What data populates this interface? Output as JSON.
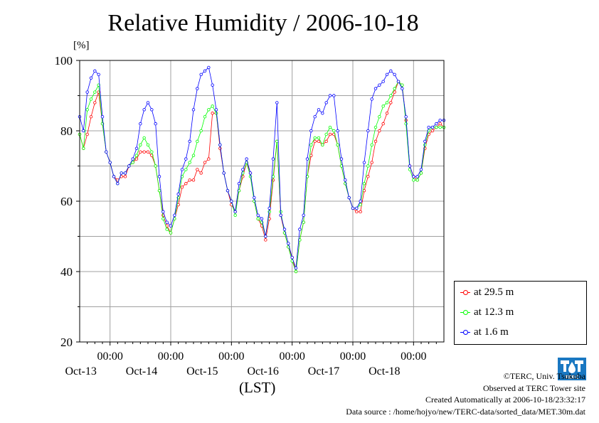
{
  "chart_data": {
    "type": "line",
    "title": "Relative Humidity / 2006-10-18",
    "unit_label": "[%]",
    "xlabel": "(LST)",
    "ylim": [
      20,
      100
    ],
    "yticks": [
      20,
      40,
      60,
      80,
      100
    ],
    "xlim": [
      0,
      144
    ],
    "x_ticks": [
      {
        "x": 12,
        "time": "00:00",
        "date": "Oct-13"
      },
      {
        "x": 36,
        "time": "00:00",
        "date": "Oct-14"
      },
      {
        "x": 60,
        "time": "00:00",
        "date": "Oct-15"
      },
      {
        "x": 84,
        "time": "00:00",
        "date": "Oct-16"
      },
      {
        "x": 108,
        "time": "00:00",
        "date": "Oct-17"
      },
      {
        "x": 132,
        "time": "00:00",
        "date": "Oct-18"
      }
    ],
    "grid": true,
    "legend_position": "right",
    "series": [
      {
        "name": "at 29.5 m",
        "color": "#ff0000",
        "points": [
          [
            0,
            79
          ],
          [
            1,
            75
          ],
          [
            2,
            79
          ],
          [
            3,
            84
          ],
          [
            4,
            88
          ],
          [
            5,
            91
          ],
          [
            6,
            82
          ],
          [
            7,
            74
          ],
          [
            8,
            71
          ],
          [
            9,
            67
          ],
          [
            10,
            66
          ],
          [
            11,
            67
          ],
          [
            12,
            67
          ],
          [
            13,
            70
          ],
          [
            14,
            71
          ],
          [
            15,
            72
          ],
          [
            16,
            74
          ],
          [
            17,
            74
          ],
          [
            18,
            74
          ],
          [
            19,
            73
          ],
          [
            20,
            70
          ],
          [
            21,
            63
          ],
          [
            22,
            56
          ],
          [
            23,
            53
          ],
          [
            24,
            51
          ],
          [
            25,
            55
          ],
          [
            26,
            59
          ],
          [
            27,
            64
          ],
          [
            28,
            65
          ],
          [
            29,
            66
          ],
          [
            30,
            66
          ],
          [
            31,
            69
          ],
          [
            32,
            68
          ],
          [
            33,
            71
          ],
          [
            34,
            72
          ],
          [
            35,
            85
          ],
          [
            36,
            85
          ],
          [
            37,
            75
          ],
          [
            38,
            68
          ],
          [
            39,
            63
          ],
          [
            40,
            59
          ],
          [
            41,
            57
          ],
          [
            42,
            63
          ],
          [
            43,
            67
          ],
          [
            44,
            71
          ],
          [
            45,
            68
          ],
          [
            46,
            60
          ],
          [
            47,
            55
          ],
          [
            48,
            53
          ],
          [
            49,
            49
          ],
          [
            50,
            55
          ],
          [
            51,
            66
          ],
          [
            52,
            77
          ],
          [
            53,
            56
          ],
          [
            54,
            51
          ],
          [
            55,
            47
          ],
          [
            56,
            44
          ],
          [
            57,
            40
          ],
          [
            58,
            49
          ],
          [
            59,
            54
          ],
          [
            60,
            67
          ],
          [
            61,
            73
          ],
          [
            62,
            77
          ],
          [
            63,
            77
          ],
          [
            64,
            76
          ],
          [
            65,
            77
          ],
          [
            66,
            79
          ],
          [
            67,
            79
          ],
          [
            68,
            76
          ],
          [
            69,
            70
          ],
          [
            70,
            65
          ],
          [
            71,
            61
          ],
          [
            72,
            58
          ],
          [
            73,
            57
          ],
          [
            74,
            57
          ],
          [
            75,
            63
          ],
          [
            76,
            67
          ],
          [
            77,
            71
          ],
          [
            78,
            77
          ],
          [
            79,
            80
          ],
          [
            80,
            82
          ],
          [
            81,
            85
          ],
          [
            82,
            88
          ],
          [
            83,
            91
          ],
          [
            84,
            94
          ],
          [
            85,
            93
          ],
          [
            86,
            83
          ],
          [
            87,
            70
          ],
          [
            88,
            67
          ],
          [
            89,
            66
          ],
          [
            90,
            68
          ],
          [
            91,
            75
          ],
          [
            92,
            79
          ],
          [
            93,
            80
          ],
          [
            94,
            81
          ],
          [
            95,
            82
          ],
          [
            96,
            81
          ]
        ]
      },
      {
        "name": "at 12.3 m",
        "color": "#00ff00",
        "points": [
          [
            0,
            79
          ],
          [
            1,
            75
          ],
          [
            2,
            86
          ],
          [
            3,
            89
          ],
          [
            4,
            91
          ],
          [
            5,
            93
          ],
          [
            6,
            82
          ],
          [
            7,
            74
          ],
          [
            8,
            71
          ],
          [
            9,
            67
          ],
          [
            10,
            65
          ],
          [
            11,
            68
          ],
          [
            12,
            68
          ],
          [
            13,
            70
          ],
          [
            14,
            71
          ],
          [
            15,
            73
          ],
          [
            16,
            76
          ],
          [
            17,
            78
          ],
          [
            18,
            76
          ],
          [
            19,
            74
          ],
          [
            20,
            70
          ],
          [
            21,
            63
          ],
          [
            22,
            55
          ],
          [
            23,
            52
          ],
          [
            24,
            51
          ],
          [
            25,
            55
          ],
          [
            26,
            61
          ],
          [
            27,
            67
          ],
          [
            28,
            69
          ],
          [
            29,
            71
          ],
          [
            30,
            73
          ],
          [
            31,
            77
          ],
          [
            32,
            80
          ],
          [
            33,
            84
          ],
          [
            34,
            86
          ],
          [
            35,
            87
          ],
          [
            36,
            85
          ],
          [
            37,
            76
          ],
          [
            38,
            68
          ],
          [
            39,
            63
          ],
          [
            40,
            60
          ],
          [
            41,
            56
          ],
          [
            42,
            63
          ],
          [
            43,
            68
          ],
          [
            44,
            71
          ],
          [
            45,
            67
          ],
          [
            46,
            60
          ],
          [
            47,
            55
          ],
          [
            48,
            54
          ],
          [
            49,
            50
          ],
          [
            50,
            57
          ],
          [
            51,
            67
          ],
          [
            52,
            77
          ],
          [
            53,
            57
          ],
          [
            54,
            51
          ],
          [
            55,
            47
          ],
          [
            56,
            43
          ],
          [
            57,
            40
          ],
          [
            58,
            49
          ],
          [
            59,
            54
          ],
          [
            60,
            67
          ],
          [
            61,
            76
          ],
          [
            62,
            78
          ],
          [
            63,
            78
          ],
          [
            64,
            76
          ],
          [
            65,
            79
          ],
          [
            66,
            81
          ],
          [
            67,
            80
          ],
          [
            68,
            76
          ],
          [
            69,
            70
          ],
          [
            70,
            65
          ],
          [
            71,
            61
          ],
          [
            72,
            58
          ],
          [
            73,
            58
          ],
          [
            74,
            59
          ],
          [
            75,
            65
          ],
          [
            76,
            70
          ],
          [
            77,
            76
          ],
          [
            78,
            81
          ],
          [
            79,
            84
          ],
          [
            80,
            87
          ],
          [
            81,
            88
          ],
          [
            82,
            90
          ],
          [
            83,
            92
          ],
          [
            84,
            94
          ],
          [
            85,
            93
          ],
          [
            86,
            82
          ],
          [
            87,
            69
          ],
          [
            88,
            66
          ],
          [
            89,
            66
          ],
          [
            90,
            68
          ],
          [
            91,
            76
          ],
          [
            92,
            80
          ],
          [
            93,
            81
          ],
          [
            94,
            81
          ],
          [
            95,
            81
          ],
          [
            96,
            81
          ]
        ]
      },
      {
        "name": "at 1.6 m",
        "color": "#0000ff",
        "points": [
          [
            0,
            84
          ],
          [
            1,
            80
          ],
          [
            2,
            91
          ],
          [
            3,
            95
          ],
          [
            4,
            97
          ],
          [
            5,
            96
          ],
          [
            6,
            84
          ],
          [
            7,
            74
          ],
          [
            8,
            71
          ],
          [
            9,
            67
          ],
          [
            10,
            65
          ],
          [
            11,
            68
          ],
          [
            12,
            68
          ],
          [
            13,
            70
          ],
          [
            14,
            72
          ],
          [
            15,
            75
          ],
          [
            16,
            82
          ],
          [
            17,
            86
          ],
          [
            18,
            88
          ],
          [
            19,
            86
          ],
          [
            20,
            82
          ],
          [
            21,
            67
          ],
          [
            22,
            57
          ],
          [
            23,
            54
          ],
          [
            24,
            53
          ],
          [
            25,
            56
          ],
          [
            26,
            62
          ],
          [
            27,
            69
          ],
          [
            28,
            72
          ],
          [
            29,
            77
          ],
          [
            30,
            86
          ],
          [
            31,
            92
          ],
          [
            32,
            96
          ],
          [
            33,
            97
          ],
          [
            34,
            98
          ],
          [
            35,
            93
          ],
          [
            36,
            86
          ],
          [
            37,
            76
          ],
          [
            38,
            68
          ],
          [
            39,
            63
          ],
          [
            40,
            60
          ],
          [
            41,
            57
          ],
          [
            42,
            65
          ],
          [
            43,
            69
          ],
          [
            44,
            72
          ],
          [
            45,
            68
          ],
          [
            46,
            61
          ],
          [
            47,
            56
          ],
          [
            48,
            55
          ],
          [
            49,
            50
          ],
          [
            50,
            58
          ],
          [
            51,
            72
          ],
          [
            52,
            88
          ],
          [
            53,
            56
          ],
          [
            54,
            52
          ],
          [
            55,
            48
          ],
          [
            56,
            44
          ],
          [
            57,
            41
          ],
          [
            58,
            52
          ],
          [
            59,
            56
          ],
          [
            60,
            72
          ],
          [
            61,
            80
          ],
          [
            62,
            84
          ],
          [
            63,
            86
          ],
          [
            64,
            85
          ],
          [
            65,
            88
          ],
          [
            66,
            90
          ],
          [
            67,
            90
          ],
          [
            68,
            80
          ],
          [
            69,
            72
          ],
          [
            70,
            66
          ],
          [
            71,
            61
          ],
          [
            72,
            58
          ],
          [
            73,
            58
          ],
          [
            74,
            60
          ],
          [
            75,
            71
          ],
          [
            76,
            80
          ],
          [
            77,
            89
          ],
          [
            78,
            92
          ],
          [
            79,
            93
          ],
          [
            80,
            94
          ],
          [
            81,
            96
          ],
          [
            82,
            97
          ],
          [
            83,
            96
          ],
          [
            84,
            94
          ],
          [
            85,
            92
          ],
          [
            86,
            84
          ],
          [
            87,
            70
          ],
          [
            88,
            67
          ],
          [
            89,
            67
          ],
          [
            90,
            69
          ],
          [
            91,
            77
          ],
          [
            92,
            81
          ],
          [
            93,
            81
          ],
          [
            94,
            82
          ],
          [
            95,
            83
          ],
          [
            96,
            83
          ]
        ]
      }
    ]
  },
  "legend": {
    "items": [
      {
        "label": "at 29.5 m",
        "color": "#ff0000"
      },
      {
        "label": "at 12.3 m",
        "color": "#00ff00"
      },
      {
        "label": "at 1.6 m",
        "color": "#0000ff"
      }
    ]
  },
  "footer": {
    "logo_text": "TERC",
    "copyright": "©TERC, Univ. Tsukuba",
    "observed": "Observed at TERC Tower site",
    "created": "Created Automatically at 2006-10-18/23:32:17",
    "source": "Data source : /home/hojyo/new/TERC-data/sorted_data/MET.30m.dat"
  }
}
